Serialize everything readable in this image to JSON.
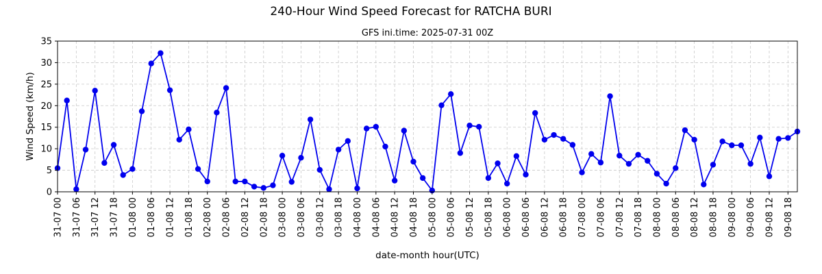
{
  "chart_data": {
    "type": "line",
    "title": "240-Hour Wind Speed Forecast for RATCHA BURI",
    "subtitle": "GFS ini.time: 2025-07-31 00Z",
    "xlabel": "date-month hour(UTC)",
    "ylabel": "Wind Speed (km/h)",
    "ylim": [
      0,
      35
    ],
    "yticks": [
      0,
      5,
      10,
      15,
      20,
      25,
      30,
      35
    ],
    "grid": true,
    "x_interval_hours": 3,
    "x_tick_every": 2,
    "xtick_labels": [
      "31-07 00",
      "31-07 06",
      "31-07 12",
      "31-07 18",
      "01-08 00",
      "01-08 06",
      "01-08 12",
      "01-08 18",
      "02-08 00",
      "02-08 06",
      "02-08 12",
      "02-08 18",
      "03-08 00",
      "03-08 06",
      "03-08 12",
      "03-08 18",
      "04-08 00",
      "04-08 06",
      "04-08 12",
      "04-08 18",
      "05-08 00",
      "05-08 06",
      "05-08 12",
      "05-08 18",
      "06-08 00",
      "06-08 06",
      "06-08 12",
      "06-08 18",
      "07-08 00",
      "07-08 06",
      "07-08 12",
      "07-08 18",
      "08-08 00",
      "08-08 06",
      "08-08 12",
      "08-08 18",
      "09-08 00",
      "09-08 06",
      "09-08 12",
      "09-08 18"
    ],
    "series": [
      {
        "color": "#0000ee",
        "values": [
          5.5,
          21.2,
          0.6,
          9.8,
          23.5,
          6.7,
          10.9,
          3.9,
          5.3,
          18.7,
          29.8,
          32.2,
          23.6,
          12.1,
          14.5,
          5.3,
          2.4,
          18.4,
          24.1,
          2.4,
          2.4,
          1.2,
          0.9,
          1.5,
          8.4,
          2.3,
          7.9,
          16.8,
          5.1,
          0.6,
          9.8,
          11.8,
          0.8,
          14.7,
          15.1,
          10.5,
          2.6,
          14.2,
          7.0,
          3.2,
          0.3,
          20.1,
          22.7,
          9.0,
          15.4,
          15.1,
          3.2,
          6.6,
          1.9,
          8.3,
          4.0,
          18.3,
          12.1,
          13.2,
          12.3,
          10.9,
          4.5,
          8.8,
          6.8,
          22.2,
          8.4,
          6.5,
          8.6,
          7.2,
          4.2,
          1.9,
          5.5,
          14.3,
          12.1,
          1.7,
          6.3,
          11.7,
          10.8,
          10.8,
          6.5,
          12.6,
          3.6,
          12.3,
          12.5,
          14.0
        ]
      }
    ]
  }
}
